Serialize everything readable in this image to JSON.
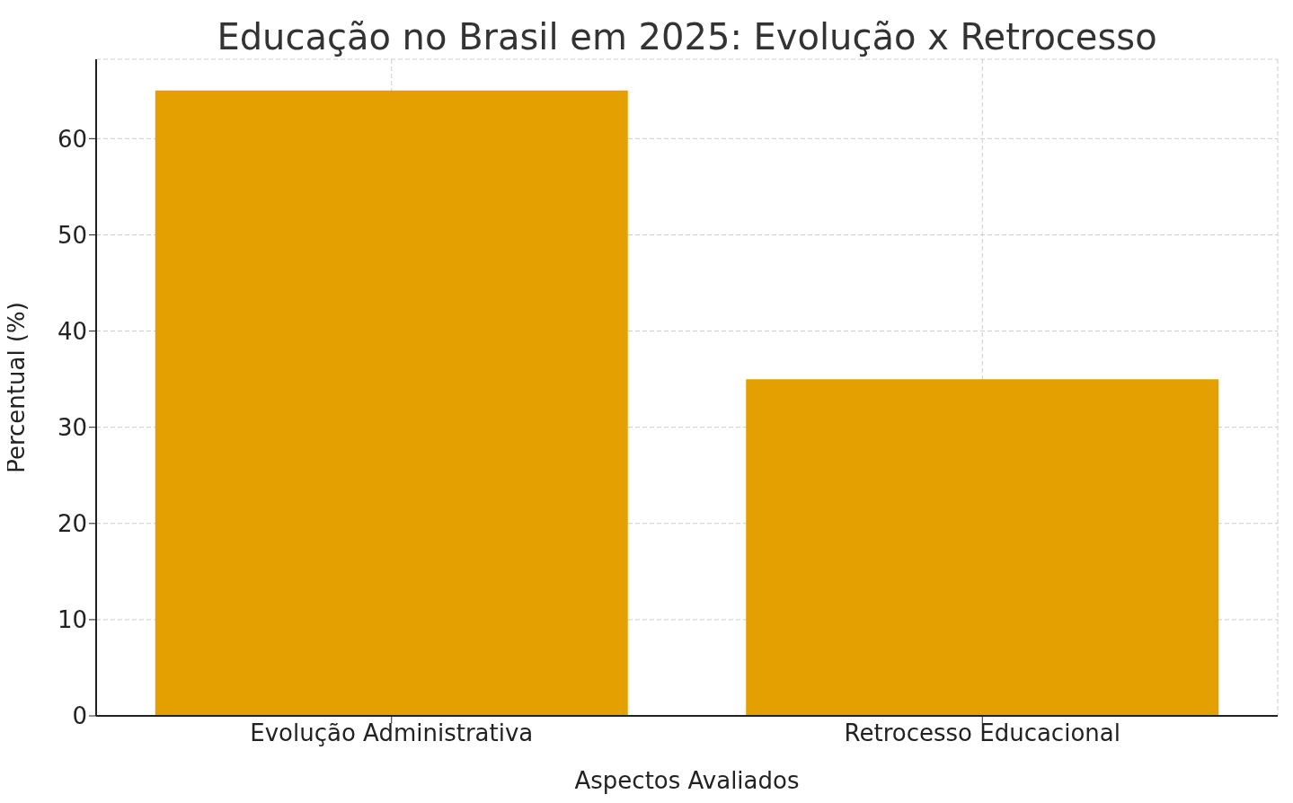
{
  "chart_data": {
    "type": "bar",
    "title": "Educação no Brasil em 2025: Evolução x Retrocesso",
    "xlabel": "Aspectos Avaliados",
    "ylabel": "Percentual (%)",
    "categories": [
      "Evolução Administrativa",
      "Retrocesso Educacional"
    ],
    "values": [
      65,
      35
    ],
    "color": "#e3a000",
    "ylim": [
      0,
      68.25
    ],
    "yticks": [
      0,
      10,
      20,
      30,
      40,
      50,
      60
    ],
    "grid": true
  }
}
